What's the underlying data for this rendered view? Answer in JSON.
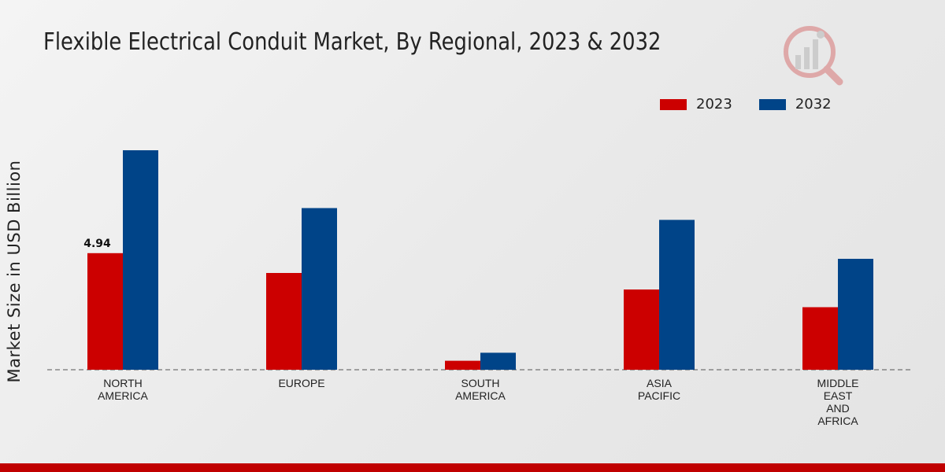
{
  "chart_data": {
    "type": "bar",
    "title": "Flexible Electrical Conduit Market, By Regional, 2023 & 2032",
    "xlabel": "",
    "ylabel": "Market Size in USD Billion",
    "categories": [
      [
        "NORTH",
        "AMERICA"
      ],
      [
        "EUROPE"
      ],
      [
        "SOUTH",
        "AMERICA"
      ],
      [
        "ASIA",
        "PACIFIC"
      ],
      [
        "MIDDLE",
        "EAST",
        "AND",
        "AFRICA"
      ]
    ],
    "series": [
      {
        "name": "2023",
        "color": "#cc0000",
        "values": [
          4.94,
          4.1,
          0.38,
          3.4,
          2.65
        ]
      },
      {
        "name": "2032",
        "color": "#004488",
        "values": [
          9.3,
          6.85,
          0.72,
          6.35,
          4.7
        ]
      }
    ],
    "data_labels": [
      {
        "series": 0,
        "index": 0,
        "text": "4.94"
      }
    ],
    "ylim": [
      0,
      12
    ],
    "grid": false,
    "legend": "top-right"
  },
  "legend": {
    "items": [
      {
        "label": "2023",
        "color": "#cc0000"
      },
      {
        "label": "2032",
        "color": "#004488"
      }
    ]
  },
  "colors": {
    "accent": "#c00000"
  }
}
